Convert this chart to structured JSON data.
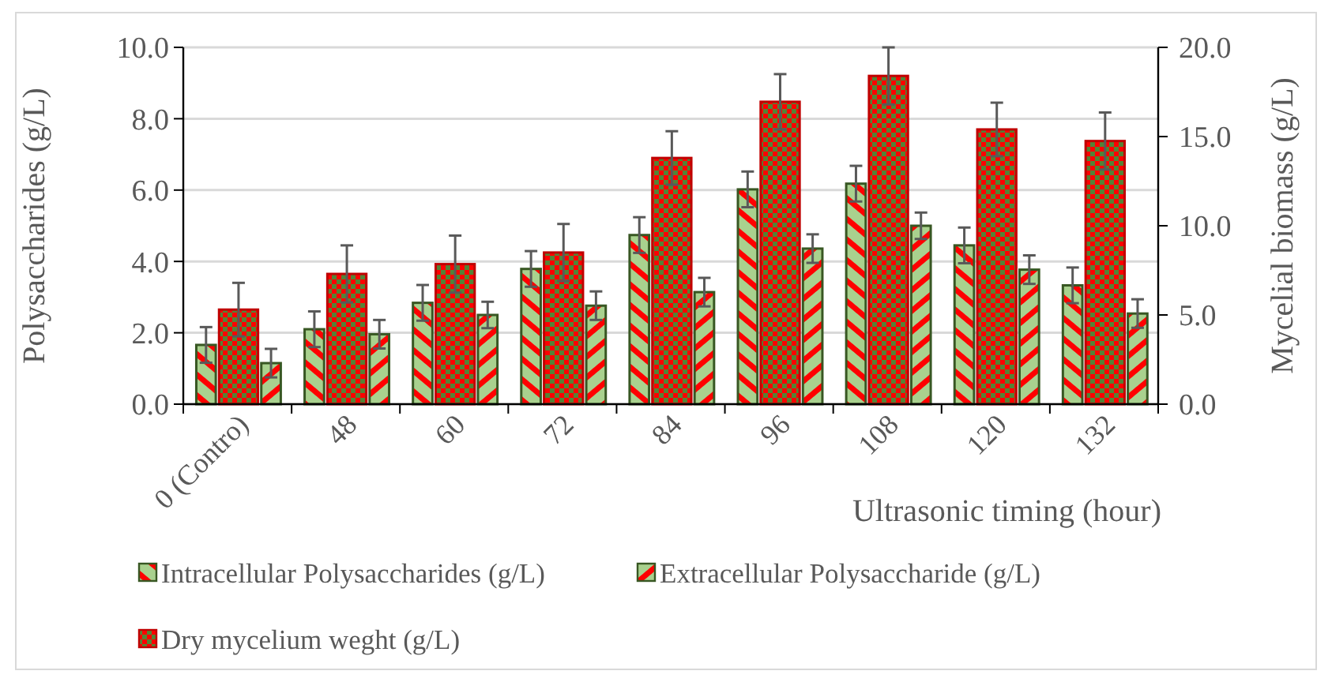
{
  "chart_data": {
    "type": "bar",
    "categories": [
      "0 (Contro)",
      "48",
      "60",
      "72",
      "84",
      "96",
      "108",
      "120",
      "132"
    ],
    "series": [
      {
        "name": "Intracellular Polysaccharides (g/L)",
        "color": "#385723",
        "values": [
          1.66,
          2.1,
          2.84,
          3.79,
          4.74,
          6.02,
          6.18,
          4.45,
          3.33
        ],
        "errors": [
          0.5,
          0.5,
          0.5,
          0.5,
          0.5,
          0.5,
          0.5,
          0.5,
          0.5
        ]
      },
      {
        "name": "Dry mycelium weght (g/L)",
        "color": "#c00000",
        "axis": "y2",
        "values": [
          5.3,
          7.3,
          7.85,
          8.5,
          13.8,
          16.95,
          18.4,
          15.4,
          14.75
        ],
        "errors": [
          1.5,
          1.6,
          1.6,
          1.6,
          1.5,
          1.55,
          1.6,
          1.5,
          1.6
        ]
      },
      {
        "name": "Extracellular Polysaccharide (g/L)",
        "color": "#385723",
        "values": [
          1.15,
          1.96,
          2.5,
          2.76,
          3.14,
          4.36,
          5.0,
          3.77,
          2.54
        ],
        "errors": [
          0.4,
          0.4,
          0.37,
          0.4,
          0.4,
          0.4,
          0.37,
          0.4,
          0.4
        ]
      }
    ],
    "xlabel": "Ultrasonic timing (hour)",
    "ylabel": "Polysaccharides (g/L)",
    "y2label": "Mycelial biomass (g/L)",
    "ylim": [
      0,
      10
    ],
    "yticks": [
      {
        "value": 0,
        "label": "0.0"
      },
      {
        "value": 2,
        "label": "2.0"
      },
      {
        "value": 4,
        "label": "4.0"
      },
      {
        "value": 6,
        "label": "6.0"
      },
      {
        "value": 8,
        "label": "8.0"
      },
      {
        "value": 10,
        "label": "10.0"
      }
    ],
    "y2lim": [
      0,
      20
    ],
    "y2ticks": [
      {
        "value": 0,
        "label": "0.0"
      },
      {
        "value": 5,
        "label": "5.0"
      },
      {
        "value": 10,
        "label": "10.0"
      },
      {
        "value": 15,
        "label": "15.0"
      },
      {
        "value": 20,
        "label": "20.0"
      }
    ],
    "grid": "y",
    "legend": "bottom"
  }
}
